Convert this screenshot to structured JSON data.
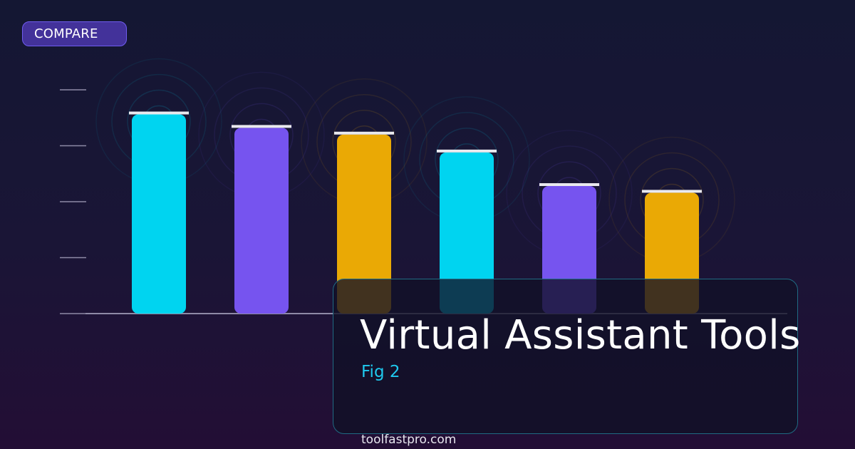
{
  "badge": {
    "label": "COMPARE"
  },
  "header": {
    "title": "Virtual Assistant Tools",
    "subtitle": "Fig 2"
  },
  "footer": {
    "domain": "toolfastpro.com"
  },
  "colors": {
    "background_top": "#141733",
    "background_bottom": "#230e35",
    "accent_cyan": "#00d4f0",
    "accent_purple": "#7654ef",
    "accent_amber": "#eaa905",
    "cap": "#e9e9ee"
  },
  "chart_data": {
    "type": "bar",
    "categories": [
      "",
      "",
      "",
      "",
      "",
      ""
    ],
    "values": [
      89,
      83,
      80,
      72,
      57,
      54
    ],
    "bar_colors": [
      "#00d4f0",
      "#7654ef",
      "#eaa905",
      "#00d4f0",
      "#7654ef",
      "#eaa905"
    ],
    "ylim": [
      0,
      100
    ],
    "yticks": [
      0,
      25,
      50,
      75,
      100
    ],
    "title": "",
    "xlabel": "",
    "ylabel": "",
    "grid": false,
    "legend": "none"
  }
}
